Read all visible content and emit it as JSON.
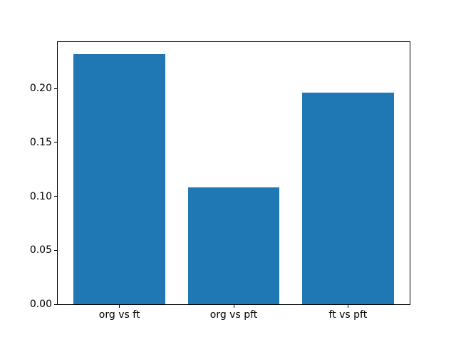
{
  "chart_data": {
    "type": "bar",
    "categories": [
      "org vs ft",
      "org vs pft",
      "ft vs pft"
    ],
    "values": [
      0.232,
      0.108,
      0.196
    ],
    "title": "",
    "xlabel": "",
    "ylabel": "",
    "xlim": [
      -0.54,
      2.54
    ],
    "ylim": [
      0,
      0.243
    ],
    "bar_width": 0.8,
    "bar_color": "#1f77b4",
    "axis_color": "#000000",
    "background_color": "#ffffff",
    "yticks": [
      0.0,
      0.05,
      0.1,
      0.15,
      0.2
    ],
    "ytick_labels": [
      "0.00",
      "0.05",
      "0.10",
      "0.15",
      "0.20"
    ],
    "grid": false,
    "legend": null
  }
}
